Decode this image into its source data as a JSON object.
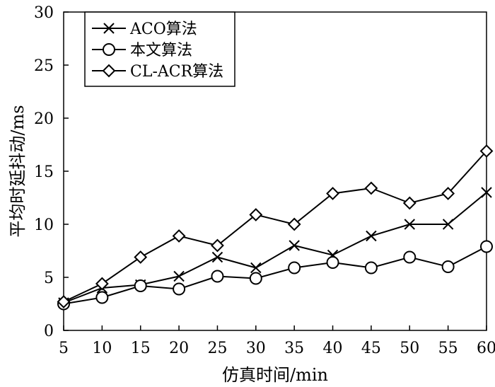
{
  "chart_data": {
    "type": "line",
    "title": "",
    "xlabel": "仿真时间/min",
    "ylabel": "平均时延抖动/ms",
    "x": [
      5,
      10,
      15,
      20,
      25,
      30,
      35,
      40,
      45,
      50,
      55,
      60
    ],
    "xlim": [
      5,
      60
    ],
    "ylim": [
      0,
      30
    ],
    "xticks": [
      "5",
      "10",
      "15",
      "20",
      "25",
      "30",
      "35",
      "40",
      "45",
      "50",
      "55",
      "60"
    ],
    "yticks": [
      "0",
      "5",
      "10",
      "15",
      "20",
      "25",
      "30"
    ],
    "grid": false,
    "legend_position": "top-left",
    "series": [
      {
        "name": "ACO算法",
        "marker": "x",
        "values": [
          2.6,
          4.0,
          4.3,
          5.1,
          6.9,
          5.9,
          8.0,
          7.1,
          8.9,
          10.0,
          10.0,
          13.0
        ]
      },
      {
        "name": "本文算法",
        "marker": "circle",
        "values": [
          2.5,
          3.1,
          4.2,
          3.9,
          5.1,
          4.9,
          5.9,
          6.4,
          5.9,
          6.9,
          6.0,
          7.9
        ]
      },
      {
        "name": "CL-ACR算法",
        "marker": "diamond",
        "values": [
          2.7,
          4.4,
          6.9,
          8.9,
          8.0,
          10.9,
          10.0,
          12.9,
          13.4,
          12.0,
          12.9,
          16.9
        ]
      }
    ]
  }
}
